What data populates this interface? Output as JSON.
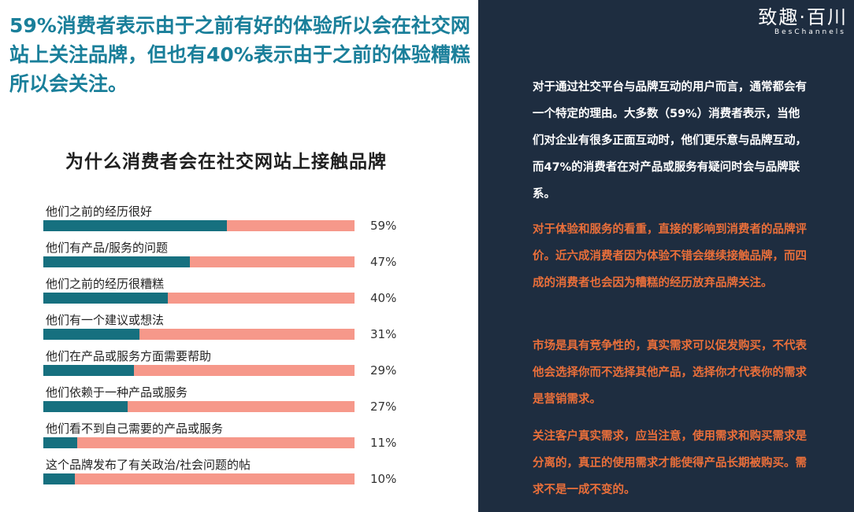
{
  "headline": "59%消费者表示由于之前有好的体验所以会在社交网站上关注品牌，但也有40%表示由于之前的体验糟糕所以会关注。",
  "chart_data": {
    "type": "bar",
    "title": "为什么消费者会在社交网站上接触品牌",
    "categories": [
      "他们之前的经历很好",
      "他们有产品/服务的问题",
      "他们之前的经历很糟糕",
      "他们有一个建议或想法",
      "他们在产品或服务方面需要帮助",
      "他们依赖于一种产品或服务",
      "他们看不到自己需要的产品或服务",
      "这个品牌发布了有关政治/社会问题的帖"
    ],
    "values": [
      59,
      47,
      40,
      31,
      29,
      27,
      11,
      10
    ],
    "value_labels": [
      "59%",
      "47%",
      "40%",
      "31%",
      "29%",
      "27%",
      "11%",
      "10%"
    ],
    "xlim": [
      0,
      100
    ],
    "colors": {
      "fill": "#16707f",
      "track": "#f6988a"
    }
  },
  "panel": {
    "logo": "致趣·百川",
    "logo_sub": "BesChannels",
    "paragraphs": [
      {
        "text": "对于通过社交平台与品牌互动的用户而言，通常都会有一个特定的理由。大多数（59%）消费者表示，当他们对企业有很多正面互动时，他们更乐意与品牌互动，而47%的消费者在对产品或服务有疑问时会与品牌联系。",
        "color": "white"
      },
      {
        "text": "对于体验和服务的看重，直接的影响到消费者的品牌评价。近六成消费者因为体验不错会继续接触品牌，而四成的消费者也会因为糟糕的经历放弃品牌关注。",
        "color": "orange"
      },
      {
        "text": "市场是具有竞争性的，真实需求可以促发购买，不代表他会选择你而不选择其他产品，选择你才代表你的需求是营销需求。",
        "color": "orange"
      },
      {
        "text": "关注客户真实需求，应当注意，使用需求和购买需求是分离的，真正的使用需求才能使得产品长期被购买。需求不是一成不变的。",
        "color": "orange"
      }
    ],
    "colors": {
      "background": "#1e2d40",
      "accent": "#ea6f3a"
    }
  }
}
